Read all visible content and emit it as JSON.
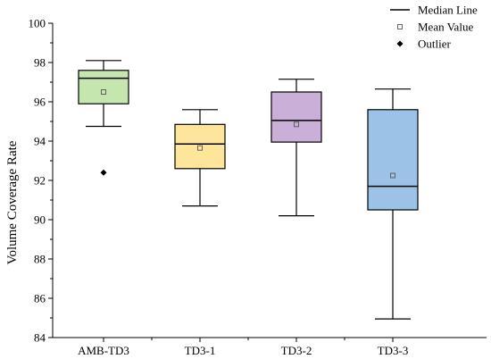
{
  "chart_data": {
    "type": "box",
    "ylabel": "Volume Coverage Rate",
    "ylim": [
      84,
      100
    ],
    "yticks": [
      84,
      86,
      88,
      90,
      92,
      94,
      96,
      98,
      100
    ],
    "categories": [
      "AMB-TD3",
      "TD3-1",
      "TD3-2",
      "TD3-3"
    ],
    "boxes": [
      {
        "category": "AMB-TD3",
        "whisker_low": 94.75,
        "q1": 95.9,
        "median": 97.2,
        "q3": 97.6,
        "whisker_high": 98.1,
        "mean": 96.5,
        "outliers": [
          92.4
        ],
        "color": "#c6e6b0"
      },
      {
        "category": "TD3-1",
        "whisker_low": 90.7,
        "q1": 92.6,
        "median": 93.85,
        "q3": 94.85,
        "whisker_high": 95.6,
        "mean": 93.65,
        "outliers": [],
        "color": "#fde59b"
      },
      {
        "category": "TD3-2",
        "whisker_low": 90.2,
        "q1": 93.95,
        "median": 95.05,
        "q3": 96.5,
        "whisker_high": 97.15,
        "mean": 94.85,
        "outliers": [],
        "color": "#cab0d9"
      },
      {
        "category": "TD3-3",
        "whisker_low": 84.95,
        "q1": 90.5,
        "median": 91.7,
        "q3": 95.6,
        "whisker_high": 96.65,
        "mean": 92.25,
        "outliers": [],
        "color": "#9cc3e7"
      }
    ],
    "legend": {
      "position": "top-right",
      "items": [
        {
          "label": "Median Line",
          "symbol": "line"
        },
        {
          "label": "Mean Value",
          "symbol": "open-square"
        },
        {
          "label": "Outlier",
          "symbol": "diamond"
        }
      ]
    }
  }
}
